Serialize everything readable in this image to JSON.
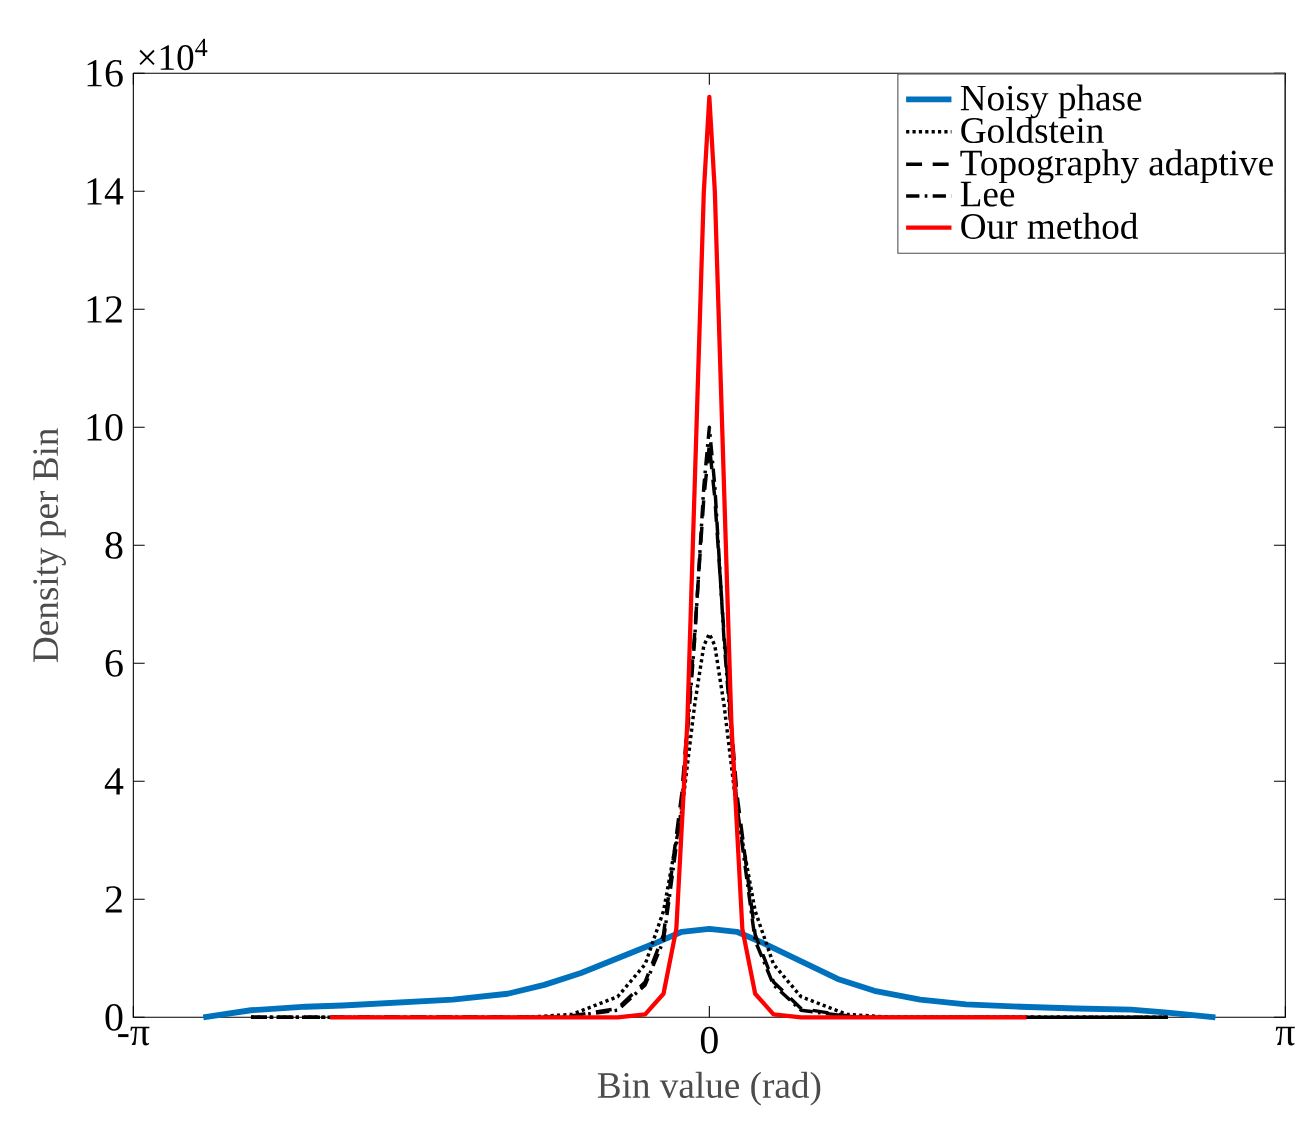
{
  "chart_data": {
    "type": "line",
    "xlabel": "Bin value (rad)",
    "ylabel": "Density per Bin",
    "annotations": [
      "×10$^{4}$"
    ],
    "xlim": [
      -3.14159,
      3.14159
    ],
    "xticks": [
      {
        "value": -3.14159,
        "label": "-π"
      },
      0,
      {
        "value": 3.14159,
        "label": "π"
      }
    ],
    "ylim": [
      0,
      16
    ],
    "yticks": [
      0,
      2,
      4,
      6,
      8,
      10,
      12,
      14,
      16
    ],
    "grid": false,
    "legend": "top right",
    "series": [
      {
        "name": "Noisy phase",
        "color": "#0072bd",
        "line_style": "solid",
        "x": [
          -2.76,
          -2.5,
          -2.2,
          -2.0,
          -1.7,
          -1.4,
          -1.1,
          -0.9,
          -0.7,
          -0.5,
          -0.3,
          -0.15,
          0,
          0.15,
          0.3,
          0.5,
          0.7,
          0.9,
          1.15,
          1.4,
          1.7,
          2.0,
          2.3,
          2.5,
          2.76
        ],
        "values": [
          0,
          0.12,
          0.18,
          0.2,
          0.25,
          0.3,
          0.4,
          0.55,
          0.75,
          1.0,
          1.25,
          1.45,
          1.5,
          1.45,
          1.25,
          0.95,
          0.65,
          0.45,
          0.3,
          0.22,
          0.18,
          0.15,
          0.13,
          0.08,
          0
        ]
      },
      {
        "name": "Goldstein",
        "color": "#000000",
        "line_style": "dotted",
        "x": [
          -2.5,
          -1.0,
          -0.75,
          -0.5,
          -0.35,
          -0.25,
          -0.15,
          -0.08,
          -0.03,
          0,
          0.03,
          0.08,
          0.15,
          0.25,
          0.35,
          0.5,
          0.75,
          1.0,
          2.5
        ],
        "values": [
          0,
          0,
          0.05,
          0.35,
          0.9,
          1.8,
          3.5,
          5.3,
          6.3,
          6.5,
          6.3,
          5.3,
          3.5,
          1.8,
          0.9,
          0.35,
          0.05,
          0,
          0
        ]
      },
      {
        "name": "Topography adaptive",
        "color": "#000000",
        "line_style": "dashed",
        "x": [
          -2.5,
          -0.8,
          -0.5,
          -0.35,
          -0.25,
          -0.15,
          -0.08,
          -0.03,
          0,
          0.03,
          0.08,
          0.15,
          0.25,
          0.35,
          0.5,
          0.8,
          2.5
        ],
        "values": [
          0,
          0,
          0.15,
          0.6,
          1.4,
          3.8,
          6.5,
          8.8,
          9.7,
          8.8,
          6.5,
          3.8,
          1.4,
          0.6,
          0.15,
          0,
          0
        ]
      },
      {
        "name": "Lee",
        "color": "#000000",
        "line_style": "dashdot",
        "x": [
          -2.5,
          -0.8,
          -0.5,
          -0.35,
          -0.25,
          -0.15,
          -0.08,
          -0.03,
          0,
          0.03,
          0.08,
          0.15,
          0.25,
          0.35,
          0.5,
          0.8,
          2.5
        ],
        "values": [
          0,
          0,
          0.12,
          0.55,
          1.3,
          3.6,
          6.4,
          9.0,
          10.0,
          9.0,
          6.4,
          3.6,
          1.3,
          0.55,
          0.12,
          0,
          0
        ]
      },
      {
        "name": "Our method",
        "color": "#ff0000",
        "line_style": "solid",
        "x": [
          -2.07,
          -0.5,
          -0.35,
          -0.25,
          -0.18,
          -0.12,
          -0.07,
          -0.03,
          0,
          0.03,
          0.07,
          0.12,
          0.18,
          0.25,
          0.35,
          0.5,
          1.73
        ],
        "values": [
          0,
          0,
          0.05,
          0.4,
          1.5,
          5,
          10,
          14,
          15.6,
          14,
          10,
          5,
          1.5,
          0.4,
          0.05,
          0,
          0
        ]
      }
    ]
  }
}
